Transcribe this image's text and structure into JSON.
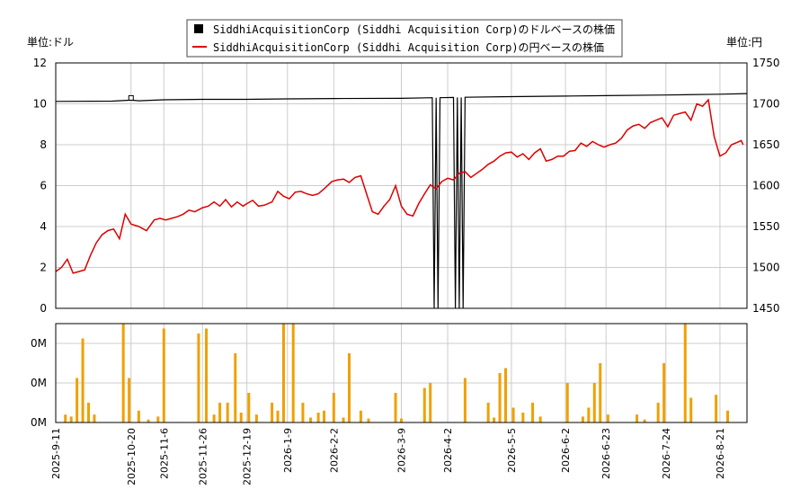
{
  "chart_data": [
    {
      "type": "line",
      "left_unit_label": "単位:ドル",
      "right_unit_label": "単位:円",
      "legend": {
        "placement": "top-center",
        "entries": [
          {
            "label": "SiddhiAcquisitionCorp (Siddhi Acquisition Corp)のドルベースの株価",
            "color": "#000000",
            "marker": "square"
          },
          {
            "label": "SiddhiAcquisitionCorp (Siddhi Acquisition Corp)の円ベースの株価",
            "color": "#dd0000",
            "marker": "line"
          }
        ]
      },
      "left_axis": {
        "min": 0,
        "max": 12,
        "ticks": [
          "0",
          "2",
          "4",
          "6",
          "8",
          "10",
          "12"
        ]
      },
      "right_axis": {
        "min": 1450,
        "max": 1750,
        "ticks": [
          "1450",
          "1500",
          "1550",
          "1600",
          "1650",
          "1700",
          "1750"
        ]
      },
      "x_range": [
        "2025-09-11",
        "2026-09-04"
      ],
      "x_tick_labels": [
        "2025-9-11",
        "2025-10-20",
        "2025-11-6",
        "2025-11-26",
        "2025-12-19",
        "2026-1-9",
        "2026-2-2",
        "2026-3-9",
        "2026-4-2",
        "2026-5-5",
        "2026-6-2",
        "2026-6-23",
        "2026-7-24",
        "2026-8-21"
      ],
      "x_tick_dates": [
        "2025-09-11",
        "2025-10-20",
        "2025-11-06",
        "2025-11-26",
        "2025-12-19",
        "2026-01-09",
        "2026-02-02",
        "2026-03-09",
        "2026-04-02",
        "2026-05-05",
        "2026-06-02",
        "2026-06-23",
        "2026-07-24",
        "2026-08-21"
      ],
      "grid": true,
      "series": [
        {
          "name": "SiddhiAcquisitionCorp (Siddhi Acquisition Corp)のドルベースの株価",
          "axis": "left",
          "color": "#000000",
          "points": [
            [
              "2025-09-11",
              10.12
            ],
            [
              "2025-10-10",
              10.13
            ],
            [
              "2025-10-20",
              10.18
            ],
            [
              "2025-10-24",
              10.15
            ],
            [
              "2025-11-06",
              10.2
            ],
            [
              "2025-11-26",
              10.22
            ],
            [
              "2025-12-19",
              10.22
            ],
            [
              "2026-01-09",
              10.24
            ],
            [
              "2026-02-02",
              10.26
            ],
            [
              "2026-03-09",
              10.27
            ],
            [
              "2026-03-25",
              10.3
            ],
            [
              "2026-03-26",
              0.0
            ],
            [
              "2026-03-27",
              10.3
            ],
            [
              "2026-03-28",
              0.0
            ],
            [
              "2026-03-29",
              10.3
            ],
            [
              "2026-04-05",
              10.31
            ],
            [
              "2026-04-06",
              0.0
            ],
            [
              "2026-04-07",
              10.31
            ],
            [
              "2026-04-08",
              0.0
            ],
            [
              "2026-04-09",
              10.31
            ],
            [
              "2026-04-10",
              0.0
            ],
            [
              "2026-04-11",
              10.32
            ],
            [
              "2026-05-05",
              10.35
            ],
            [
              "2026-06-02",
              10.38
            ],
            [
              "2026-06-23",
              10.4
            ],
            [
              "2026-07-24",
              10.43
            ],
            [
              "2026-08-21",
              10.47
            ],
            [
              "2026-09-04",
              10.5
            ]
          ]
        },
        {
          "name": "SiddhiAcquisitionCorp (Siddhi Acquisition Corp)の円ベースの株価",
          "axis": "right",
          "color": "#dd0000",
          "points": [
            [
              "2025-09-11",
              1495
            ],
            [
              "2025-09-14",
              1500
            ],
            [
              "2025-09-17",
              1510
            ],
            [
              "2025-09-20",
              1493
            ],
            [
              "2025-09-23",
              1495
            ],
            [
              "2025-09-26",
              1497
            ],
            [
              "2025-09-29",
              1515
            ],
            [
              "2025-10-02",
              1530
            ],
            [
              "2025-10-05",
              1540
            ],
            [
              "2025-10-08",
              1545
            ],
            [
              "2025-10-11",
              1547
            ],
            [
              "2025-10-14",
              1535
            ],
            [
              "2025-10-17",
              1565
            ],
            [
              "2025-10-20",
              1553
            ],
            [
              "2025-10-24",
              1550
            ],
            [
              "2025-10-28",
              1545
            ],
            [
              "2025-11-01",
              1558
            ],
            [
              "2025-11-04",
              1560
            ],
            [
              "2025-11-07",
              1558
            ],
            [
              "2025-11-10",
              1560
            ],
            [
              "2025-11-13",
              1562
            ],
            [
              "2025-11-16",
              1565
            ],
            [
              "2025-11-19",
              1570
            ],
            [
              "2025-11-22",
              1568
            ],
            [
              "2025-11-26",
              1573
            ],
            [
              "2025-11-29",
              1575
            ],
            [
              "2025-12-02",
              1580
            ],
            [
              "2025-12-05",
              1575
            ],
            [
              "2025-12-08",
              1583
            ],
            [
              "2025-12-11",
              1574
            ],
            [
              "2025-12-14",
              1580
            ],
            [
              "2025-12-17",
              1575
            ],
            [
              "2025-12-19",
              1578
            ],
            [
              "2025-12-22",
              1582
            ],
            [
              "2025-12-25",
              1575
            ],
            [
              "2025-12-28",
              1576
            ],
            [
              "2026-01-01",
              1580
            ],
            [
              "2026-01-04",
              1593
            ],
            [
              "2026-01-07",
              1587
            ],
            [
              "2026-01-10",
              1584
            ],
            [
              "2026-01-13",
              1592
            ],
            [
              "2026-01-16",
              1593
            ],
            [
              "2026-01-19",
              1590
            ],
            [
              "2026-01-22",
              1588
            ],
            [
              "2026-01-25",
              1590
            ],
            [
              "2026-01-28",
              1596
            ],
            [
              "2026-02-01",
              1605
            ],
            [
              "2026-02-04",
              1607
            ],
            [
              "2026-02-07",
              1608
            ],
            [
              "2026-02-10",
              1604
            ],
            [
              "2026-02-13",
              1610
            ],
            [
              "2026-02-16",
              1612
            ],
            [
              "2026-02-19",
              1590
            ],
            [
              "2026-02-22",
              1568
            ],
            [
              "2026-02-25",
              1565
            ],
            [
              "2026-02-28",
              1575
            ],
            [
              "2026-03-03",
              1583
            ],
            [
              "2026-03-06",
              1600
            ],
            [
              "2026-03-09",
              1575
            ],
            [
              "2026-03-12",
              1565
            ],
            [
              "2026-03-15",
              1563
            ],
            [
              "2026-03-18",
              1578
            ],
            [
              "2026-03-21",
              1590
            ],
            [
              "2026-03-24",
              1601
            ],
            [
              "2026-03-27",
              1596
            ],
            [
              "2026-03-30",
              1605
            ],
            [
              "2026-04-02",
              1609
            ],
            [
              "2026-04-05",
              1607
            ],
            [
              "2026-04-08",
              1615
            ],
            [
              "2026-04-11",
              1617
            ],
            [
              "2026-04-14",
              1610
            ],
            [
              "2026-04-17",
              1615
            ],
            [
              "2026-04-20",
              1620
            ],
            [
              "2026-04-23",
              1626
            ],
            [
              "2026-04-26",
              1630
            ],
            [
              "2026-04-29",
              1636
            ],
            [
              "2026-05-02",
              1640
            ],
            [
              "2026-05-05",
              1641
            ],
            [
              "2026-05-08",
              1635
            ],
            [
              "2026-05-11",
              1639
            ],
            [
              "2026-05-14",
              1632
            ],
            [
              "2026-05-17",
              1640
            ],
            [
              "2026-05-20",
              1645
            ],
            [
              "2026-05-23",
              1630
            ],
            [
              "2026-05-26",
              1632
            ],
            [
              "2026-05-29",
              1636
            ],
            [
              "2026-06-01",
              1636
            ],
            [
              "2026-06-04",
              1642
            ],
            [
              "2026-06-07",
              1643
            ],
            [
              "2026-06-10",
              1652
            ],
            [
              "2026-06-13",
              1648
            ],
            [
              "2026-06-16",
              1654
            ],
            [
              "2026-06-19",
              1650
            ],
            [
              "2026-06-22",
              1647
            ],
            [
              "2026-06-25",
              1650
            ],
            [
              "2026-06-28",
              1652
            ],
            [
              "2026-07-01",
              1658
            ],
            [
              "2026-07-04",
              1668
            ],
            [
              "2026-07-07",
              1673
            ],
            [
              "2026-07-10",
              1675
            ],
            [
              "2026-07-13",
              1670
            ],
            [
              "2026-07-16",
              1677
            ],
            [
              "2026-07-19",
              1680
            ],
            [
              "2026-07-22",
              1683
            ],
            [
              "2026-07-25",
              1672
            ],
            [
              "2026-07-28",
              1686
            ],
            [
              "2026-07-31",
              1688
            ],
            [
              "2026-08-03",
              1690
            ],
            [
              "2026-08-06",
              1680
            ],
            [
              "2026-08-09",
              1700
            ],
            [
              "2026-08-12",
              1697
            ],
            [
              "2026-08-15",
              1705
            ],
            [
              "2026-08-18",
              1660
            ],
            [
              "2026-08-21",
              1636
            ],
            [
              "2026-08-24",
              1640
            ],
            [
              "2026-08-27",
              1650
            ],
            [
              "2026-08-30",
              1653
            ],
            [
              "2026-09-01",
              1655
            ],
            [
              "2026-09-02",
              1650
            ]
          ]
        }
      ]
    },
    {
      "type": "bar",
      "y_tick_labels": [
        "0M",
        "0M",
        "0M"
      ],
      "grid": true,
      "color": "#f0a000",
      "note_scale": "relative volume, 0 to 1 of panel height",
      "series": [
        {
          "values": [
            [
              "2025-09-16",
              0.08
            ],
            [
              "2025-09-19",
              0.06
            ],
            [
              "2025-09-22",
              0.45
            ],
            [
              "2025-09-25",
              0.85
            ],
            [
              "2025-09-28",
              0.2
            ],
            [
              "2025-10-01",
              0.08
            ],
            [
              "2025-10-16",
              1.0
            ],
            [
              "2025-10-19",
              0.45
            ],
            [
              "2025-10-24",
              0.12
            ],
            [
              "2025-10-29",
              0.03
            ],
            [
              "2025-11-03",
              0.06
            ],
            [
              "2025-11-06",
              0.95
            ],
            [
              "2025-11-24",
              0.9
            ],
            [
              "2025-11-28",
              0.95
            ],
            [
              "2025-12-02",
              0.08
            ],
            [
              "2025-12-05",
              0.2
            ],
            [
              "2025-12-09",
              0.2
            ],
            [
              "2025-12-13",
              0.7
            ],
            [
              "2025-12-16",
              0.1
            ],
            [
              "2025-12-20",
              0.3
            ],
            [
              "2025-12-24",
              0.08
            ],
            [
              "2026-01-01",
              0.2
            ],
            [
              "2026-01-04",
              0.12
            ],
            [
              "2026-01-07",
              1.0
            ],
            [
              "2026-01-12",
              1.0
            ],
            [
              "2026-01-17",
              0.2
            ],
            [
              "2026-01-21",
              0.05
            ],
            [
              "2026-01-25",
              0.1
            ],
            [
              "2026-01-28",
              0.12
            ],
            [
              "2026-02-02",
              0.3
            ],
            [
              "2026-02-07",
              0.05
            ],
            [
              "2026-02-10",
              0.7
            ],
            [
              "2026-02-16",
              0.12
            ],
            [
              "2026-02-20",
              0.04
            ],
            [
              "2026-03-06",
              0.3
            ],
            [
              "2026-03-09",
              0.04
            ],
            [
              "2026-03-21",
              0.35
            ],
            [
              "2026-03-24",
              0.4
            ],
            [
              "2026-04-11",
              0.45
            ],
            [
              "2026-04-23",
              0.2
            ],
            [
              "2026-04-26",
              0.05
            ],
            [
              "2026-04-29",
              0.5
            ],
            [
              "2026-05-02",
              0.55
            ],
            [
              "2026-05-06",
              0.15
            ],
            [
              "2026-05-11",
              0.1
            ],
            [
              "2026-05-16",
              0.2
            ],
            [
              "2026-05-20",
              0.06
            ],
            [
              "2026-06-03",
              0.4
            ],
            [
              "2026-06-11",
              0.06
            ],
            [
              "2026-06-14",
              0.15
            ],
            [
              "2026-06-17",
              0.4
            ],
            [
              "2026-06-20",
              0.6
            ],
            [
              "2026-06-24",
              0.08
            ],
            [
              "2026-07-09",
              0.08
            ],
            [
              "2026-07-13",
              0.03
            ],
            [
              "2026-07-20",
              0.2
            ],
            [
              "2026-07-23",
              0.6
            ],
            [
              "2026-08-03",
              1.0
            ],
            [
              "2026-08-06",
              0.25
            ],
            [
              "2026-08-19",
              0.28
            ],
            [
              "2026-08-25",
              0.12
            ]
          ]
        }
      ]
    }
  ]
}
